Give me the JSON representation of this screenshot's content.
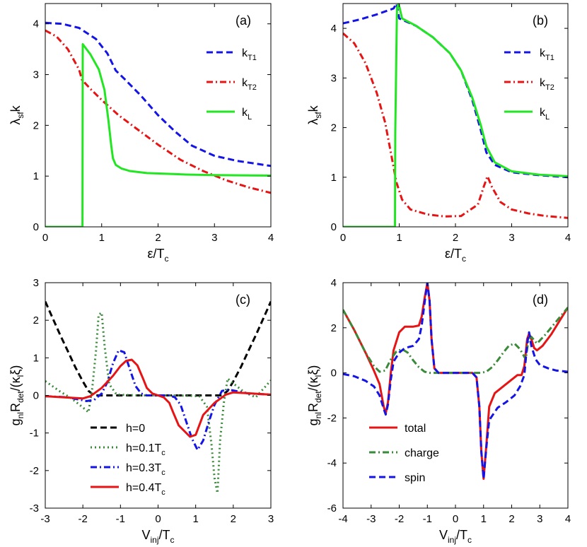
{
  "chart_data": [
    {
      "panel": "(a)",
      "type": "line",
      "xlabel": {
        "main": "ε/T",
        "sub": "c"
      },
      "ylabel": {
        "main": "λ",
        "sub": "sf",
        "tail": "k"
      },
      "xlim": [
        0,
        4
      ],
      "ylim": [
        0,
        4.4
      ],
      "xticks": [
        0,
        1,
        2,
        3,
        4
      ],
      "yticks": [
        0,
        1,
        2,
        3,
        4
      ],
      "legend_position": "right",
      "series": [
        {
          "name": "k",
          "name_sub": "T1",
          "color": "#1414e6",
          "dash": "dashed",
          "x": [
            0,
            0.3,
            0.6,
            0.9,
            1.1,
            1.25,
            1.4,
            1.7,
            2.0,
            2.3,
            2.6,
            3.0,
            3.4,
            4.0
          ],
          "y": [
            4.02,
            4.0,
            3.92,
            3.7,
            3.42,
            3.08,
            2.92,
            2.58,
            2.2,
            1.88,
            1.6,
            1.4,
            1.3,
            1.2
          ]
        },
        {
          "name": "k",
          "name_sub": "T2",
          "color": "#e61414",
          "dash": "dashdot",
          "x": [
            0,
            0.2,
            0.4,
            0.6,
            0.65,
            0.8,
            1.0,
            1.3,
            1.6,
            2.0,
            2.4,
            2.8,
            3.2,
            3.6,
            4.0
          ],
          "y": [
            3.87,
            3.75,
            3.5,
            3.1,
            2.9,
            2.72,
            2.5,
            2.2,
            1.95,
            1.62,
            1.32,
            1.1,
            0.92,
            0.78,
            0.67
          ]
        },
        {
          "name": "k",
          "name_sub": "L",
          "color": "#22e622",
          "dash": "solid",
          "x": [
            0,
            0.66,
            0.665,
            0.8,
            0.95,
            1.05,
            1.12,
            1.17,
            1.2,
            1.25,
            1.35,
            1.5,
            1.8,
            2.5,
            3.0,
            4.0
          ],
          "y": [
            0,
            0,
            3.6,
            3.4,
            3.1,
            2.7,
            2.1,
            1.6,
            1.35,
            1.22,
            1.15,
            1.1,
            1.06,
            1.03,
            1.02,
            1.01
          ]
        }
      ]
    },
    {
      "panel": "(b)",
      "type": "line",
      "xlabel": {
        "main": "ε/T",
        "sub": "c"
      },
      "ylabel": {
        "main": "λ",
        "sub": "sf",
        "tail": "k"
      },
      "xlim": [
        0,
        4
      ],
      "ylim": [
        0,
        4.5
      ],
      "xticks": [
        0,
        1,
        2,
        3,
        4
      ],
      "yticks": [
        0,
        1,
        2,
        3,
        4
      ],
      "legend_position": "right",
      "series": [
        {
          "name": "k",
          "name_sub": "T1",
          "color": "#1414e6",
          "dash": "dashed",
          "x": [
            0,
            0.3,
            0.6,
            0.9,
            0.95,
            1.0,
            1.3,
            1.6,
            1.9,
            2.1,
            2.3,
            2.45,
            2.55,
            2.7,
            3.0,
            3.5,
            4.0
          ],
          "y": [
            4.1,
            4.18,
            4.28,
            4.4,
            4.5,
            4.2,
            4.05,
            3.82,
            3.5,
            3.15,
            2.55,
            1.95,
            1.5,
            1.25,
            1.1,
            1.04,
            1.0
          ]
        },
        {
          "name": "k",
          "name_sub": "T2",
          "color": "#e61414",
          "dash": "dashdot",
          "x": [
            0,
            0.2,
            0.4,
            0.6,
            0.75,
            0.85,
            0.95,
            1.05,
            1.2,
            1.5,
            1.8,
            2.1,
            2.4,
            2.5,
            2.57,
            2.65,
            2.8,
            3.0,
            3.3,
            3.6,
            4.0
          ],
          "y": [
            3.9,
            3.7,
            3.3,
            2.7,
            2.1,
            1.5,
            0.9,
            0.55,
            0.35,
            0.25,
            0.21,
            0.22,
            0.45,
            0.8,
            1.02,
            0.8,
            0.5,
            0.35,
            0.27,
            0.22,
            0.18
          ]
        },
        {
          "name": "k",
          "name_sub": "L",
          "color": "#22e622",
          "dash": "solid",
          "x": [
            0,
            0.925,
            0.93,
            0.96,
            0.99,
            1.05,
            1.3,
            1.6,
            1.9,
            2.1,
            2.3,
            2.45,
            2.55,
            2.7,
            3.0,
            3.5,
            4.0
          ],
          "y": [
            0,
            0,
            1.9,
            4.4,
            4.5,
            4.2,
            4.05,
            3.82,
            3.5,
            3.15,
            2.6,
            2.05,
            1.62,
            1.3,
            1.12,
            1.05,
            1.02
          ]
        }
      ]
    },
    {
      "panel": "(c)",
      "type": "line",
      "xlabel": {
        "main": "V",
        "sub": "inj",
        "tail": "/T",
        "sub2": "c"
      },
      "ylabel": {
        "main": "g",
        "sub": "nl",
        "mid": "R",
        "sub2": "det",
        "tail": "/(κ",
        "sub3": "l",
        "tail2": "ξ)"
      },
      "xlim": [
        -3,
        3
      ],
      "ylim": [
        -3,
        3
      ],
      "xticks": [
        -3,
        -2,
        -1,
        0,
        1,
        2,
        3
      ],
      "yticks": [
        -3,
        -2,
        -1,
        0,
        1,
        2,
        3
      ],
      "legend_position": "lower-left",
      "series": [
        {
          "name": "h=0",
          "color": "#000000",
          "dash": "dashed",
          "x": [
            -3,
            -2.8,
            -2.6,
            -2.4,
            -2.2,
            -2.0,
            -1.85,
            -1.7,
            1.7,
            1.85,
            2.0,
            2.2,
            2.4,
            2.6,
            2.8,
            3.0
          ],
          "y": [
            2.5,
            2.05,
            1.6,
            1.18,
            0.75,
            0.37,
            0.12,
            0,
            0,
            0.12,
            0.37,
            0.75,
            1.18,
            1.6,
            2.05,
            2.5
          ]
        },
        {
          "name": "h=0.1T",
          "name_sub": "c",
          "color": "#3a8a3a",
          "dash": "dotted",
          "x": [
            -3,
            -2.6,
            -2.3,
            -2.0,
            -1.85,
            -1.75,
            -1.65,
            -1.58,
            -1.5,
            -1.42,
            -1.3,
            -1.1,
            -0.5,
            0.5,
            1.1,
            1.3,
            1.42,
            1.5,
            1.58,
            1.65,
            1.75,
            1.85,
            2.0,
            2.3,
            2.6,
            3.0
          ],
          "y": [
            0.38,
            0.1,
            -0.08,
            -0.32,
            -0.45,
            0.2,
            1.2,
            2.15,
            2.2,
            1.3,
            0.3,
            0.02,
            0,
            0,
            -0.02,
            -0.3,
            -1.3,
            -2.2,
            -2.6,
            -1.2,
            -0.2,
            0.45,
            0.32,
            0.08,
            -0.05,
            0.4
          ]
        },
        {
          "name": "h=0.3T",
          "name_sub": "c",
          "color": "#1414e6",
          "dash": "dashdot",
          "x": [
            -3,
            -2.4,
            -1.9,
            -1.7,
            -1.5,
            -1.35,
            -1.2,
            -1.05,
            -0.9,
            -0.75,
            -0.6,
            -0.45,
            -0.3,
            0.3,
            0.45,
            0.6,
            0.75,
            0.9,
            1.05,
            1.2,
            1.35,
            1.5,
            1.7,
            1.9,
            2.4,
            3.0
          ],
          "y": [
            -0.02,
            -0.05,
            -0.15,
            -0.12,
            0.05,
            0.35,
            0.85,
            1.2,
            1.15,
            0.7,
            0.25,
            0.05,
            0,
            0,
            -0.05,
            -0.25,
            -0.7,
            -1.15,
            -1.45,
            -1.2,
            -0.7,
            -0.25,
            0.12,
            0.15,
            0.05,
            0.02
          ]
        },
        {
          "name": "h=0.4T",
          "name_sub": "c",
          "color": "#e61414",
          "dash": "solid",
          "x": [
            -3,
            -2.5,
            -2.0,
            -1.8,
            -1.5,
            -1.2,
            -1.0,
            -0.85,
            -0.7,
            -0.55,
            -0.4,
            -0.3,
            -0.15,
            0,
            0.15,
            0.3,
            0.4,
            0.55,
            0.7,
            0.85,
            1.0,
            1.2,
            1.5,
            1.8,
            2.0,
            2.5,
            3.0
          ],
          "y": [
            -0.02,
            -0.05,
            -0.08,
            -0.02,
            0.2,
            0.52,
            0.78,
            0.92,
            0.95,
            0.8,
            0.45,
            0.2,
            0.05,
            0,
            -0.05,
            -0.2,
            -0.45,
            -0.8,
            -0.95,
            -1.1,
            -1.05,
            -0.52,
            -0.2,
            0.02,
            0.08,
            0.05,
            0.02
          ]
        }
      ]
    },
    {
      "panel": "(d)",
      "type": "line",
      "xlabel": {
        "main": "V",
        "sub": "inj",
        "tail": "/T",
        "sub2": "c"
      },
      "ylabel": {
        "main": "g",
        "sub": "nl",
        "mid": "R",
        "sub2": "det",
        "tail": "/(κ",
        "sub3": "l",
        "tail2": "ξ)"
      },
      "xlim": [
        -4,
        4
      ],
      "ylim": [
        -6,
        4
      ],
      "xticks": [
        -4,
        -3,
        -2,
        -1,
        0,
        1,
        2,
        3,
        4
      ],
      "yticks": [
        -6,
        -4,
        -2,
        0,
        2,
        4
      ],
      "legend_position": "lower-left",
      "series": [
        {
          "name": "total",
          "color": "#e61414",
          "dash": "solid",
          "x": [
            -4,
            -3.6,
            -3.2,
            -2.9,
            -2.7,
            -2.55,
            -2.48,
            -2.4,
            -2.3,
            -2.2,
            -2.0,
            -1.8,
            -1.5,
            -1.3,
            -1.2,
            -1.1,
            -1.0,
            -0.92,
            -0.85,
            -0.75,
            -0.6,
            -0.4,
            0,
            0.4,
            0.6,
            0.75,
            0.85,
            0.92,
            1.0,
            1.1,
            1.2,
            1.4,
            1.7,
            2.0,
            2.2,
            2.35,
            2.45,
            2.55,
            2.62,
            2.7,
            2.8,
            2.9,
            3.1,
            3.4,
            3.7,
            4.0
          ],
          "y": [
            2.8,
            1.9,
            0.9,
            0.1,
            -0.5,
            -1.5,
            -1.8,
            -1.3,
            0,
            1.0,
            1.8,
            2.05,
            2.05,
            2.1,
            2.5,
            3.3,
            4.0,
            3.2,
            1.5,
            0.2,
            0,
            0,
            0,
            0,
            0,
            -0.2,
            -1.5,
            -3.5,
            -4.7,
            -3.2,
            -1.5,
            -0.9,
            -0.6,
            -0.3,
            -0.1,
            -0.1,
            0.3,
            1.5,
            1.75,
            1.5,
            1.1,
            1.0,
            1.2,
            1.7,
            2.3,
            2.9
          ]
        },
        {
          "name": "charge",
          "color": "#3a8a3a",
          "dash": "dashdot",
          "x": [
            -4,
            -3.6,
            -3.2,
            -2.9,
            -2.7,
            -2.5,
            -2.3,
            -2.1,
            -1.9,
            -1.7,
            -1.5,
            -1.3,
            -1.1,
            -0.9,
            -0.7,
            -0.5,
            0,
            0.5,
            0.7,
            0.9,
            1.1,
            1.3,
            1.5,
            1.7,
            1.9,
            2.1,
            2.3,
            2.5,
            2.6,
            2.7,
            2.9,
            3.2,
            3.6,
            4.0
          ],
          "y": [
            2.8,
            1.9,
            0.9,
            0.3,
            0.05,
            0.1,
            0.6,
            0.95,
            1.05,
            0.9,
            0.55,
            0.25,
            0.05,
            0,
            0,
            0,
            0,
            0,
            0,
            0,
            0.05,
            0.25,
            0.55,
            0.9,
            1.2,
            1.3,
            1.05,
            0.6,
            1.5,
            1.6,
            1.3,
            1.7,
            2.3,
            2.9
          ]
        },
        {
          "name": "spin",
          "color": "#1414e6",
          "dash": "dashed",
          "x": [
            -4,
            -3.6,
            -3.2,
            -2.9,
            -2.7,
            -2.55,
            -2.48,
            -2.4,
            -2.3,
            -2.2,
            -2.0,
            -1.8,
            -1.5,
            -1.3,
            -1.2,
            -1.1,
            -1.0,
            -0.92,
            -0.85,
            -0.75,
            -0.6,
            -0.4,
            0,
            0.4,
            0.6,
            0.75,
            0.85,
            0.92,
            1.0,
            1.1,
            1.2,
            1.5,
            1.8,
            2.1,
            2.3,
            2.45,
            2.55,
            2.62,
            2.7,
            2.85,
            3.0,
            3.3,
            3.6,
            4.0
          ],
          "y": [
            -0.05,
            -0.15,
            -0.35,
            -0.6,
            -1.0,
            -1.6,
            -1.85,
            -1.4,
            -0.3,
            0.5,
            0.9,
            1.1,
            1.2,
            1.5,
            2.1,
            3.1,
            4.0,
            3.2,
            1.5,
            0.2,
            0,
            0,
            0,
            0,
            0,
            -0.2,
            -1.5,
            -3.5,
            -4.7,
            -3.3,
            -2.1,
            -1.55,
            -1.3,
            -1.0,
            -0.6,
            -0.1,
            1.3,
            1.8,
            1.2,
            0.6,
            0.35,
            0.2,
            0.1,
            0.05
          ]
        }
      ]
    }
  ]
}
